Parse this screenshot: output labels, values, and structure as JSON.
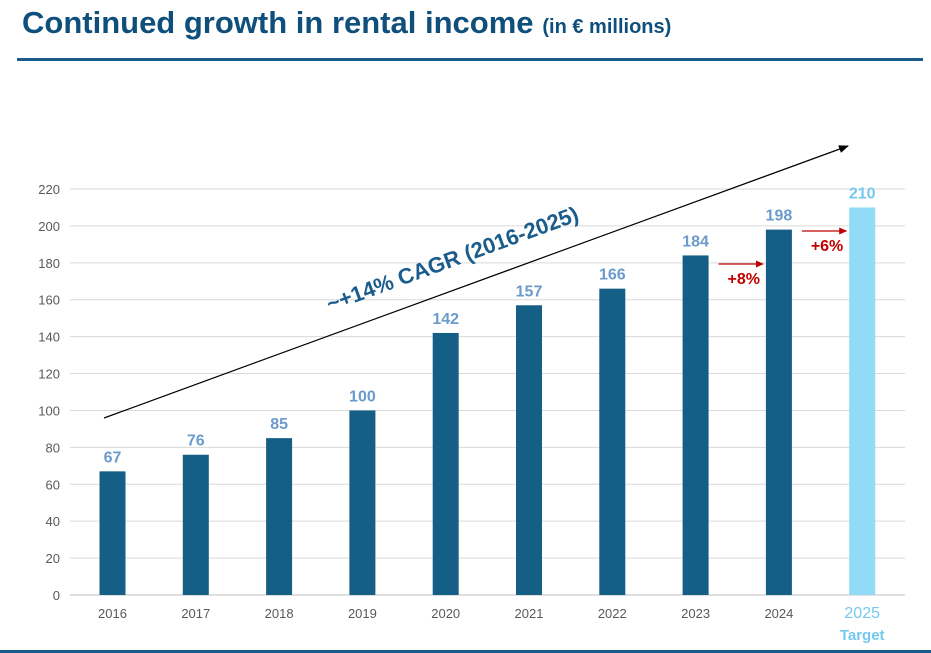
{
  "header": {
    "title": "Continued growth in rental income",
    "unit": "(in € millions)"
  },
  "colors": {
    "title": "#0f4f7c",
    "bar": "#155f86",
    "target_bar": "#92dbf6",
    "data_label": "#6a9bcb",
    "target_label": "#74c8ef",
    "growth": "#c00000",
    "cagr": "#1a5d8c"
  },
  "chart_data": {
    "type": "bar",
    "categories": [
      "2016",
      "2017",
      "2018",
      "2019",
      "2020",
      "2021",
      "2022",
      "2023",
      "2024",
      "2025"
    ],
    "values": [
      67,
      76,
      85,
      100,
      142,
      157,
      166,
      184,
      198,
      210
    ],
    "target_index": 9,
    "target_sublabel": "Target",
    "ylim": [
      0,
      220
    ],
    "yticks": [
      0,
      20,
      40,
      60,
      80,
      100,
      120,
      140,
      160,
      180,
      200,
      220
    ],
    "grid": true,
    "annotations": {
      "cagr": "~+14% CAGR (2016-2025)",
      "growth": [
        {
          "label": "+8%",
          "between": [
            7,
            8
          ]
        },
        {
          "label": "+6%",
          "between": [
            8,
            9
          ]
        }
      ]
    }
  }
}
